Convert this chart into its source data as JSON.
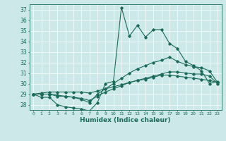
{
  "xlabel": "Humidex (Indice chaleur)",
  "bg_color": "#cce8e8",
  "line_color": "#1a6b5a",
  "xlim": [
    -0.5,
    23.5
  ],
  "ylim": [
    27.5,
    37.5
  ],
  "xticks": [
    0,
    1,
    2,
    3,
    4,
    5,
    6,
    7,
    8,
    9,
    10,
    11,
    12,
    13,
    14,
    15,
    16,
    17,
    18,
    19,
    20,
    21,
    22,
    23
  ],
  "yticks": [
    28,
    29,
    30,
    31,
    32,
    33,
    34,
    35,
    36,
    37
  ],
  "series": [
    [
      29.0,
      28.7,
      28.7,
      28.0,
      27.8,
      27.7,
      27.6,
      27.4,
      28.2,
      30.0,
      30.2,
      37.2,
      34.5,
      35.5,
      34.4,
      35.1,
      35.1,
      33.8,
      33.3,
      32.1,
      31.7,
      31.2,
      30.0,
      30.2
    ],
    [
      29.0,
      29.0,
      29.0,
      28.8,
      28.8,
      28.7,
      28.5,
      28.2,
      29.0,
      29.5,
      30.0,
      30.5,
      31.0,
      31.4,
      31.7,
      32.0,
      32.2,
      32.5,
      32.1,
      31.8,
      31.6,
      31.5,
      31.2,
      30.1
    ],
    [
      29.0,
      29.1,
      29.2,
      29.2,
      29.2,
      29.2,
      29.2,
      29.1,
      29.3,
      29.5,
      29.7,
      29.9,
      30.1,
      30.3,
      30.4,
      30.6,
      30.8,
      30.8,
      30.7,
      30.6,
      30.5,
      30.4,
      30.3,
      30.1
    ],
    [
      29.0,
      29.0,
      29.0,
      28.9,
      28.8,
      28.7,
      28.6,
      28.4,
      28.8,
      29.2,
      29.5,
      29.8,
      30.1,
      30.3,
      30.5,
      30.7,
      30.9,
      31.1,
      31.1,
      31.0,
      30.9,
      30.9,
      30.7,
      30.0
    ]
  ]
}
